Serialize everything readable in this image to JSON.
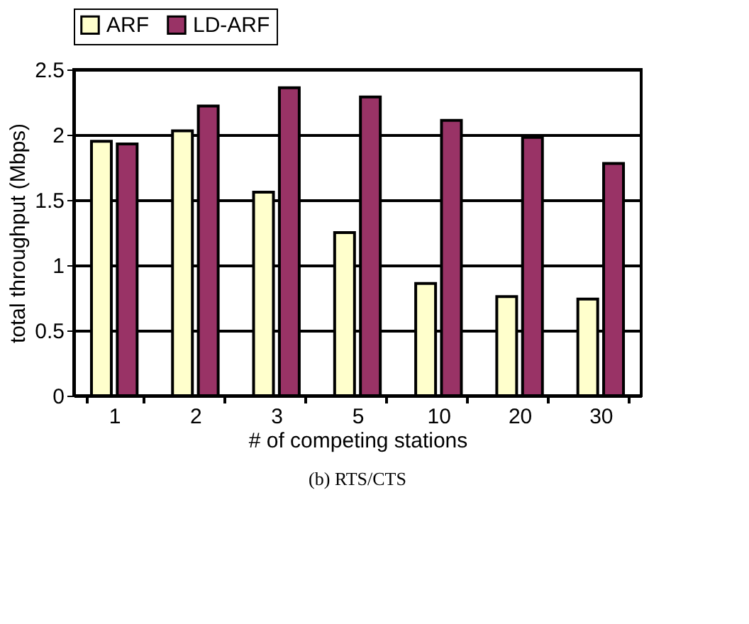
{
  "chart_data": {
    "type": "bar",
    "categories": [
      "1",
      "2",
      "3",
      "5",
      "10",
      "20",
      "30"
    ],
    "series": [
      {
        "name": "ARF",
        "color": "#ffffcc",
        "values": [
          1.95,
          2.03,
          1.56,
          1.25,
          0.86,
          0.76,
          0.74
        ]
      },
      {
        "name": "LD-ARF",
        "color": "#993366",
        "values": [
          1.93,
          2.22,
          2.36,
          2.29,
          2.11,
          1.98,
          1.78
        ]
      }
    ],
    "xlabel": "# of competing stations",
    "ylabel": "total throughput (Mbps)",
    "ylim": [
      0,
      2.5
    ],
    "yticks": [
      0,
      0.5,
      1,
      1.5,
      2,
      2.5
    ],
    "grid": "y",
    "legend": "top",
    "annotations": [
      "(b) RTS/CTS"
    ]
  }
}
